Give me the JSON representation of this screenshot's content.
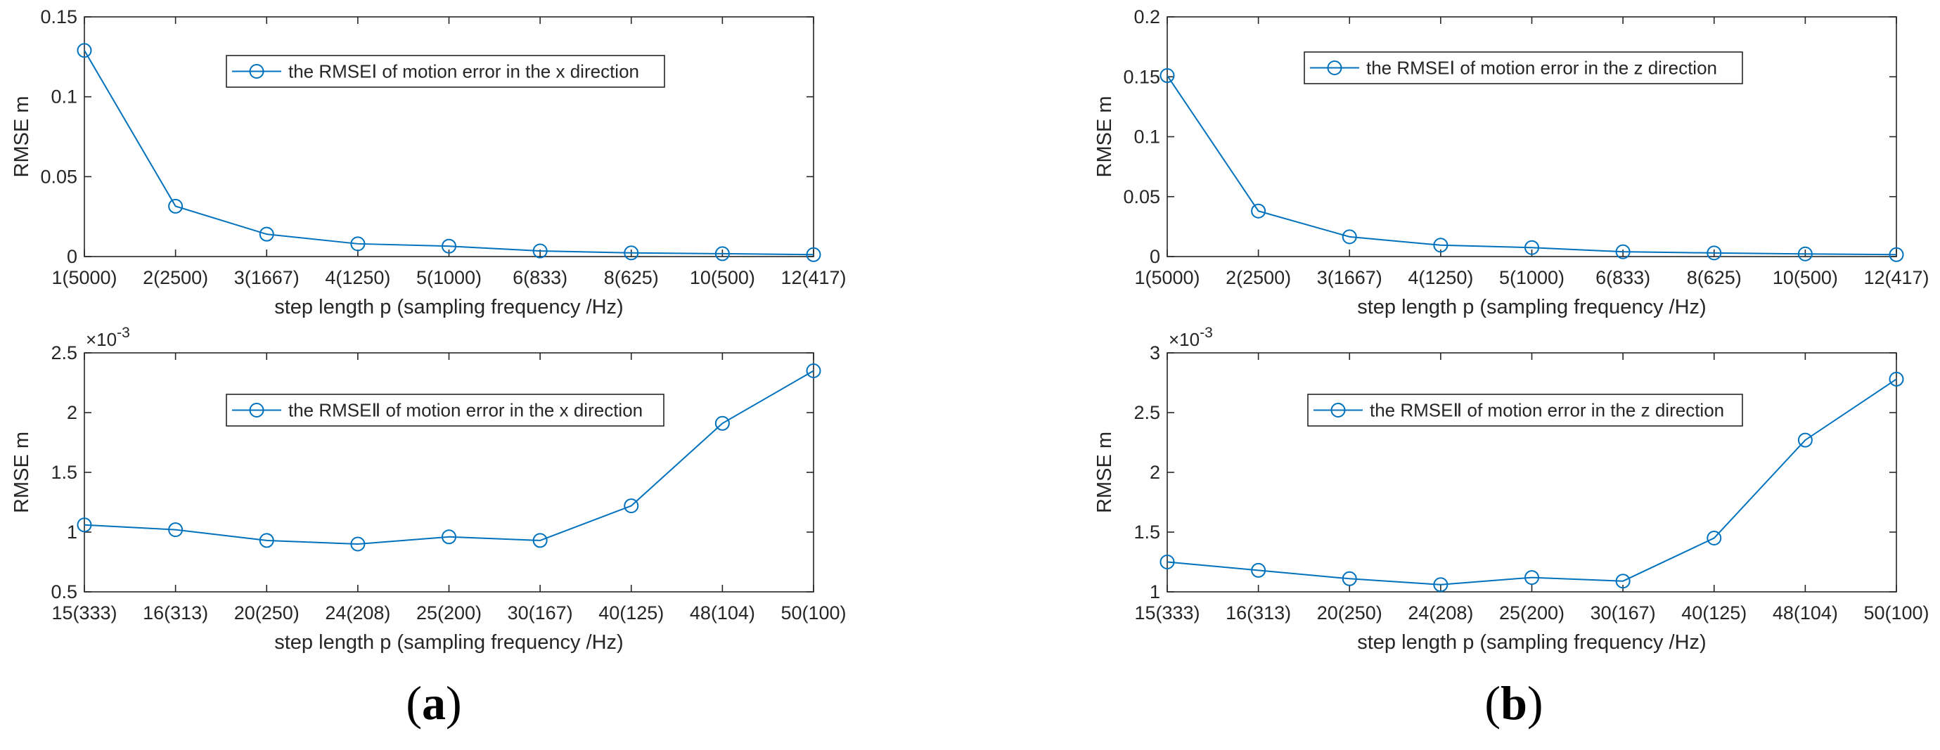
{
  "colors": {
    "series": "#0072BD",
    "axis": "#262626",
    "background": "#ffffff"
  },
  "panels": [
    {
      "label": "a",
      "open": "(",
      "close": ")"
    },
    {
      "label": "b",
      "open": "(",
      "close": ")"
    }
  ],
  "chart_data": [
    {
      "id": "a-top",
      "type": "line",
      "title": "",
      "xlabel": "step length p (sampling frequency /Hz)",
      "ylabel": "RMSE m",
      "categories": [
        "1(5000)",
        "2(2500)",
        "3(1667)",
        "4(1250)",
        "5(1000)",
        "6(833)",
        "8(625)",
        "10(500)",
        "12(417)"
      ],
      "series": [
        {
          "name": "the RMSEⅠ of motion error in the x direction",
          "marker": "circle",
          "values": [
            0.129,
            0.0315,
            0.014,
            0.008,
            0.0065,
            0.0035,
            0.0023,
            0.0018,
            0.0012
          ]
        }
      ],
      "ylim": [
        0,
        0.15
      ],
      "yticks": [
        0,
        0.05,
        0.1,
        0.15
      ],
      "yticklabels": [
        "0",
        "0.05",
        "0.1",
        "0.15"
      ],
      "exponent": "",
      "legend": "top-center"
    },
    {
      "id": "a-bottom",
      "type": "line",
      "title": "",
      "xlabel": "step length p (sampling frequency /Hz)",
      "ylabel": "RMSE m",
      "categories": [
        "15(333)",
        "16(313)",
        "20(250)",
        "24(208)",
        "25(200)",
        "30(167)",
        "40(125)",
        "48(104)",
        "50(100)"
      ],
      "series": [
        {
          "name": "the RMSEⅡ of motion error in the x direction",
          "marker": "circle",
          "values": [
            1.06,
            1.02,
            0.93,
            0.9,
            0.96,
            0.93,
            1.22,
            1.91,
            2.35
          ]
        }
      ],
      "ylim": [
        0.5,
        2.5
      ],
      "yticks": [
        0.5,
        1,
        1.5,
        2,
        2.5
      ],
      "yticklabels": [
        "0.5",
        "1",
        "1.5",
        "2",
        "2.5"
      ],
      "exponent": "×10",
      "exponent_power": "-3",
      "legend": "top-center"
    },
    {
      "id": "b-top",
      "type": "line",
      "title": "",
      "xlabel": "step length p (sampling frequency /Hz)",
      "ylabel": "RMSE m",
      "categories": [
        "1(5000)",
        "2(2500)",
        "3(1667)",
        "4(1250)",
        "5(1000)",
        "6(833)",
        "8(625)",
        "10(500)",
        "12(417)"
      ],
      "series": [
        {
          "name": "the RMSEⅠ of motion error in the z direction",
          "marker": "circle",
          "values": [
            0.151,
            0.038,
            0.0165,
            0.0095,
            0.0075,
            0.004,
            0.003,
            0.0022,
            0.0016
          ]
        }
      ],
      "ylim": [
        0,
        0.2
      ],
      "yticks": [
        0,
        0.05,
        0.1,
        0.15,
        0.2
      ],
      "yticklabels": [
        "0",
        "0.05",
        "0.1",
        "0.15",
        "0.2"
      ],
      "exponent": "",
      "legend": "top-center"
    },
    {
      "id": "b-bottom",
      "type": "line",
      "title": "",
      "xlabel": "step length p (sampling frequency /Hz)",
      "ylabel": "RMSE m",
      "categories": [
        "15(333)",
        "16(313)",
        "20(250)",
        "24(208)",
        "25(200)",
        "30(167)",
        "40(125)",
        "48(104)",
        "50(100)"
      ],
      "series": [
        {
          "name": "the RMSEⅡ of motion error in the z direction",
          "marker": "circle",
          "values": [
            1.25,
            1.18,
            1.11,
            1.06,
            1.12,
            1.09,
            1.45,
            2.27,
            2.78
          ]
        }
      ],
      "ylim": [
        1,
        3
      ],
      "yticks": [
        1,
        1.5,
        2,
        2.5,
        3
      ],
      "yticklabels": [
        "1",
        "1.5",
        "2",
        "2.5",
        "3"
      ],
      "exponent": "×10",
      "exponent_power": "-3",
      "legend": "top-center"
    }
  ]
}
